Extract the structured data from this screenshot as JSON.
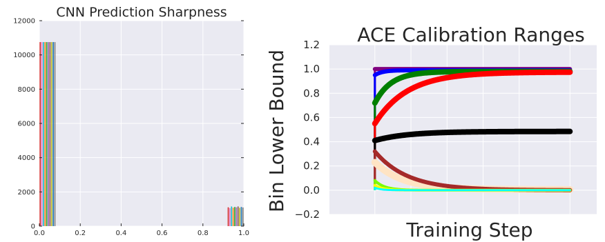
{
  "chart_data": [
    {
      "type": "bar",
      "title": "CNN Prediction Sharpness",
      "xlabel": "",
      "ylabel": "",
      "xlim": [
        0,
        1.0
      ],
      "ylim": [
        0,
        12000
      ],
      "xticks": [
        "0.0",
        "0.2",
        "0.4",
        "0.6",
        "0.8",
        "1.0"
      ],
      "yticks": [
        "0",
        "2000",
        "4000",
        "6000",
        "8000",
        "10000",
        "12000"
      ],
      "grid": true,
      "background": "#EAEAF2",
      "bar_groups": [
        {
          "x_range": [
            0.0,
            0.08
          ],
          "values": [
            10750,
            10750,
            10750,
            10750,
            10750,
            10750,
            10750,
            10750,
            10750,
            10750
          ],
          "colors": [
            "#d62728",
            "#e377c2",
            "#17becf",
            "#ff7f0e",
            "#2ca02c",
            "#9467bd",
            "#8c564b",
            "#bcbd22",
            "#1f77b4",
            "#7f7f7f"
          ]
        },
        {
          "x_range": [
            0.92,
            1.0
          ],
          "values": [
            1100,
            1050,
            1150,
            1080,
            1120,
            1100,
            1150,
            1070,
            1120,
            1090
          ],
          "colors": [
            "#d62728",
            "#e377c2",
            "#17becf",
            "#ff7f0e",
            "#2ca02c",
            "#9467bd",
            "#8c564b",
            "#bcbd22",
            "#1f77b4",
            "#7f7f7f"
          ]
        }
      ]
    },
    {
      "type": "scatter",
      "title": "ACE Calibration Ranges",
      "xlabel": "Training Step",
      "ylabel": "Bin Lower Bound",
      "ylim": [
        -0.2,
        1.2
      ],
      "yticks": [
        "−0.2",
        "0.0",
        "0.2",
        "0.4",
        "0.6",
        "0.8",
        "1.0",
        "1.2"
      ],
      "x_range_fraction": [
        0.17,
        0.9
      ],
      "grid": true,
      "background": "#EAEAF2",
      "series": [
        {
          "color": "#800080",
          "start": 1.0,
          "end": 1.0,
          "rate": 1,
          "width": 6
        },
        {
          "color": "#0000ff",
          "start": 0.95,
          "end": 0.99,
          "rate": 25,
          "width": 6
        },
        {
          "color": "#008000",
          "start": 0.72,
          "end": 0.98,
          "rate": 12,
          "width": 8
        },
        {
          "color": "#ff0000",
          "start": 0.55,
          "end": 0.975,
          "rate": 6,
          "width": 8
        },
        {
          "color": "#000000",
          "start": 0.41,
          "end": 0.485,
          "rate": 6,
          "width": 8
        },
        {
          "color": "#ffe4c4",
          "start": 0.23,
          "end": 0.005,
          "rate": 7,
          "width": 10
        },
        {
          "color": "#a52a2a",
          "start": 0.32,
          "end": 0.0,
          "rate": 6,
          "width": 6
        },
        {
          "color": "#7cfc00",
          "start": 0.08,
          "end": 0.0,
          "rate": 20,
          "width": 4
        },
        {
          "color": "#ffff00",
          "start": 0.04,
          "end": 0.0,
          "rate": 25,
          "width": 4
        },
        {
          "color": "#00ffff",
          "start": 0.02,
          "end": 0.0,
          "rate": 30,
          "width": 3
        }
      ]
    }
  ]
}
